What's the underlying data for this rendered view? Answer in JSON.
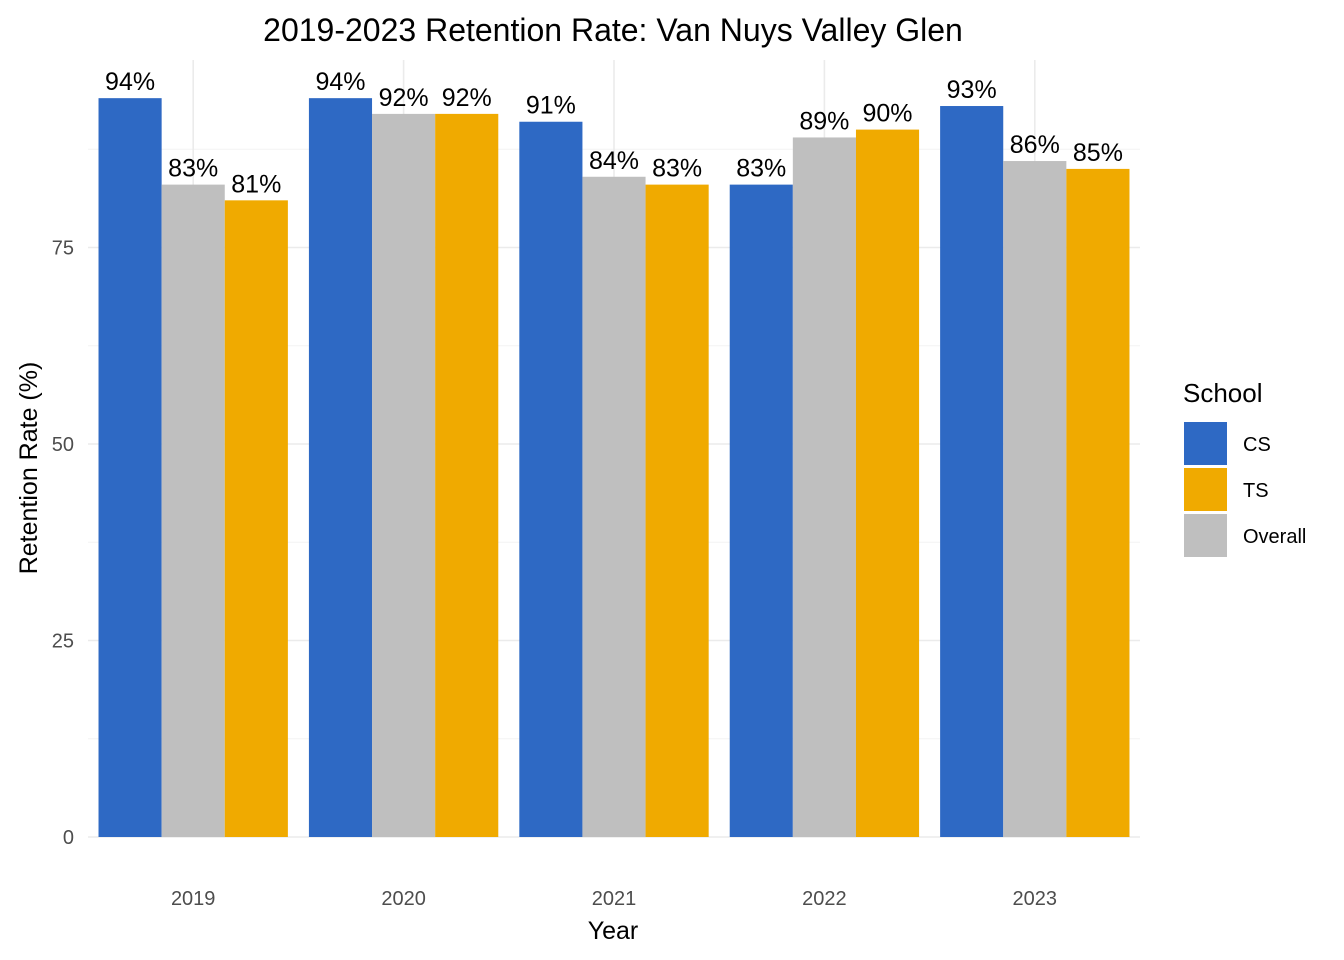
{
  "chart_data": {
    "type": "bar",
    "title": "2019-2023 Retention Rate: Van Nuys Valley Glen",
    "xlabel": "Year",
    "ylabel": "Retention Rate (%)",
    "categories": [
      "2019",
      "2020",
      "2021",
      "2022",
      "2023"
    ],
    "ylim": [
      0,
      98
    ],
    "yticks": [
      0,
      25,
      50,
      75
    ],
    "grid": true,
    "legend": {
      "title": "School",
      "placement": "right"
    },
    "bar_order": [
      "CS",
      "Overall",
      "TS"
    ],
    "series": [
      {
        "name": "CS",
        "color": "#2E69C4",
        "values": [
          94,
          94,
          91,
          83,
          93
        ],
        "labels": [
          "94%",
          "94%",
          "91%",
          "83%",
          "93%"
        ]
      },
      {
        "name": "TS",
        "color": "#F0AA00",
        "values": [
          81,
          92,
          83,
          90,
          85
        ],
        "labels": [
          "81%",
          "92%",
          "83%",
          "90%",
          "85%"
        ]
      },
      {
        "name": "Overall",
        "color": "#BFBFBF",
        "values": [
          83,
          92,
          84,
          89,
          86
        ],
        "labels": [
          "83%",
          "92%",
          "84%",
          "89%",
          "86%"
        ]
      }
    ]
  }
}
